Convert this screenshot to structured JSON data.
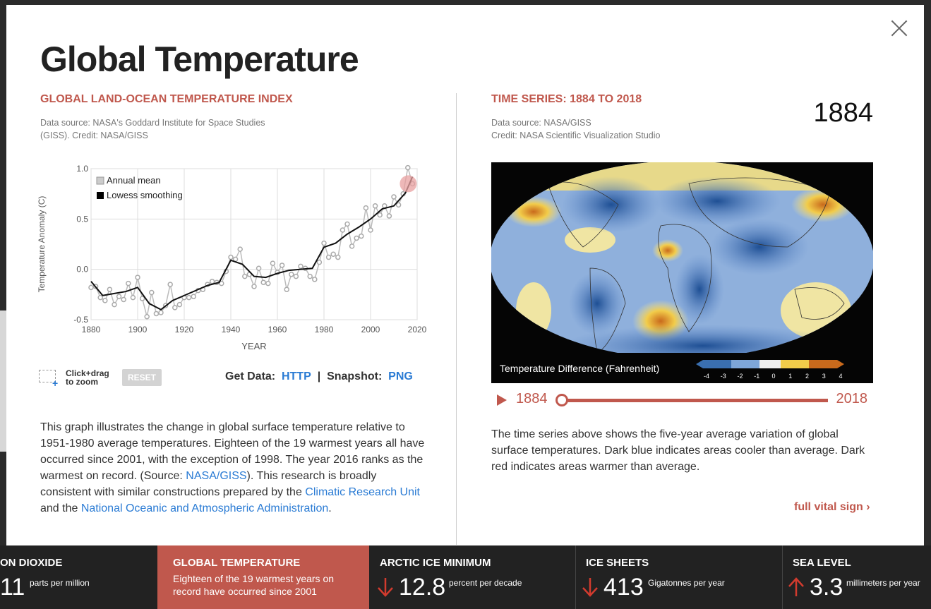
{
  "page_title": "Global Temperature",
  "left": {
    "section_title": "GLOBAL LAND-OCEAN TEMPERATURE INDEX",
    "source_line1": "Data source: NASA's Goddard Institute for Space Studies",
    "source_line2": "(GISS). Credit: NASA/GISS",
    "zoom_label_1": "Click+drag",
    "zoom_label_2": "to zoom",
    "reset_label": "RESET",
    "get_data_label": "Get Data:",
    "http_label": "HTTP",
    "pipe": "|",
    "snapshot_label": "Snapshot:",
    "png_label": "PNG",
    "desc_1": "This graph illustrates the change in global surface temperature relative to 1951-1980 average temperatures. Eighteen of the 19 warmest years all have occurred since 2001, with the exception of 1998. The year 2016 ranks as the warmest on record. (Source: ",
    "desc_link_1": "NASA/GISS",
    "desc_2": "). This research is broadly consistent with similar constructions prepared by the ",
    "desc_link_2": "Climatic Research Unit",
    "desc_3": " and the ",
    "desc_link_3": "National Oceanic and Atmospheric Administration",
    "desc_4": "."
  },
  "right": {
    "section_title": "TIME SERIES: 1884 TO 2018",
    "source_line1": "Data source: NASA/GISS",
    "source_line2": "Credit: NASA Scientific Visualization Studio",
    "current_year": "1884",
    "legend_label": "Temperature Difference (Fahrenheit)",
    "legend_ticks": [
      "-4",
      "-3",
      "-2",
      "-1",
      "0",
      "1",
      "2",
      "3",
      "4"
    ],
    "player_start": "1884",
    "player_end": "2018",
    "slider_value": 0,
    "description": "The time series above shows the five-year average variation of global surface temperatures. Dark blue indicates areas cooler than average. Dark red indicates areas warmer than average.",
    "full_vital_sign": "full vital sign ›"
  },
  "bottom_tiles": [
    {
      "title": "ON DIOXIDE",
      "value": "11",
      "unit": "parts per million",
      "arrow": "none"
    },
    {
      "title": "GLOBAL TEMPERATURE",
      "subtitle": "Eighteen of the 19 warmest years on record have occurred since 2001",
      "active": true
    },
    {
      "title": "ARCTIC ICE MINIMUM",
      "value": "12.8",
      "unit": "percent per decade",
      "arrow": "down"
    },
    {
      "title": "ICE SHEETS",
      "value": "413",
      "unit": "Gigatonnes per year",
      "arrow": "down"
    },
    {
      "title": "SEA LEVEL",
      "value": "3.3",
      "unit": "millimeters per year",
      "arrow": "up"
    }
  ],
  "colors": {
    "accent": "#c0584d",
    "link": "#2a7bd4",
    "bar_bg": "#222222"
  },
  "chart_data": {
    "type": "line",
    "ylabel": "Temperature Anomaly (C)",
    "xlabel": "YEAR",
    "xlim": [
      1880,
      2020
    ],
    "ylim": [
      -0.5,
      1.0
    ],
    "x_ticks": [
      "1880",
      "1900",
      "1920",
      "1940",
      "1960",
      "1980",
      "2000",
      "2020"
    ],
    "y_ticks": [
      "1.0",
      "0.5",
      "0.0",
      "-0.5"
    ],
    "legend": [
      "Annual mean",
      "Lowess smoothing"
    ],
    "legend_position": "top-left",
    "grid": true,
    "series": [
      {
        "name": "Annual mean",
        "x": [
          1880,
          1882,
          1884,
          1886,
          1888,
          1890,
          1892,
          1894,
          1896,
          1898,
          1900,
          1902,
          1904,
          1906,
          1908,
          1910,
          1912,
          1914,
          1916,
          1918,
          1920,
          1922,
          1924,
          1926,
          1928,
          1930,
          1932,
          1934,
          1936,
          1938,
          1940,
          1942,
          1944,
          1946,
          1948,
          1950,
          1952,
          1954,
          1956,
          1958,
          1960,
          1962,
          1964,
          1966,
          1968,
          1970,
          1972,
          1974,
          1976,
          1978,
          1980,
          1982,
          1984,
          1986,
          1988,
          1990,
          1992,
          1994,
          1996,
          1998,
          2000,
          2002,
          2004,
          2006,
          2008,
          2010,
          2012,
          2014,
          2016,
          2018
        ],
        "y": [
          -0.18,
          -0.17,
          -0.28,
          -0.31,
          -0.2,
          -0.35,
          -0.27,
          -0.3,
          -0.14,
          -0.28,
          -0.08,
          -0.29,
          -0.47,
          -0.23,
          -0.44,
          -0.43,
          -0.36,
          -0.15,
          -0.38,
          -0.35,
          -0.28,
          -0.28,
          -0.27,
          -0.21,
          -0.2,
          -0.15,
          -0.12,
          -0.13,
          -0.14,
          -0.02,
          0.12,
          0.1,
          0.2,
          -0.07,
          -0.05,
          -0.17,
          0.01,
          -0.13,
          -0.14,
          0.06,
          -0.03,
          0.04,
          -0.2,
          -0.05,
          -0.07,
          0.03,
          0.01,
          -0.07,
          -0.1,
          0.07,
          0.26,
          0.12,
          0.15,
          0.12,
          0.39,
          0.45,
          0.23,
          0.31,
          0.33,
          0.61,
          0.39,
          0.63,
          0.54,
          0.63,
          0.53,
          0.72,
          0.64,
          0.75,
          1.01,
          0.85
        ]
      },
      {
        "name": "Lowess smoothing",
        "x": [
          1880,
          1885,
          1890,
          1895,
          1900,
          1905,
          1910,
          1915,
          1920,
          1925,
          1930,
          1935,
          1940,
          1945,
          1950,
          1955,
          1960,
          1965,
          1970,
          1975,
          1980,
          1985,
          1990,
          1995,
          2000,
          2005,
          2010,
          2015,
          2018
        ],
        "y": [
          -0.12,
          -0.26,
          -0.24,
          -0.22,
          -0.18,
          -0.34,
          -0.4,
          -0.31,
          -0.26,
          -0.21,
          -0.16,
          -0.13,
          0.09,
          0.05,
          -0.07,
          -0.08,
          -0.04,
          -0.01,
          0.0,
          0.01,
          0.22,
          0.26,
          0.35,
          0.42,
          0.5,
          0.6,
          0.63,
          0.76,
          0.92
        ]
      }
    ]
  }
}
